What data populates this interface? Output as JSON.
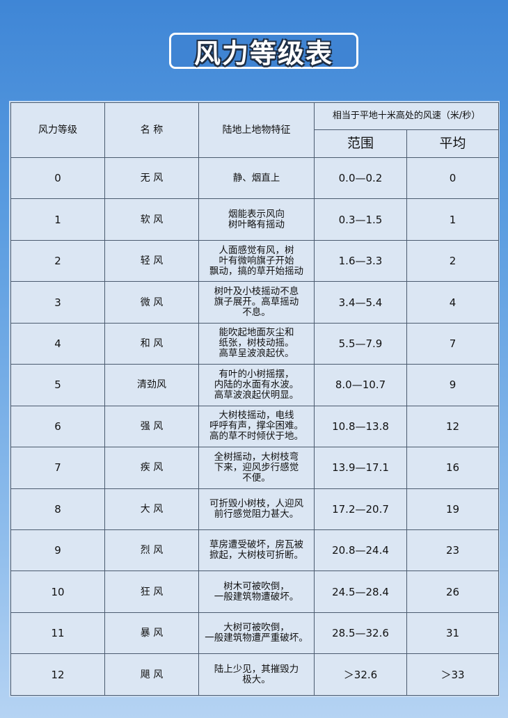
{
  "title": "风力等级表",
  "header": {
    "level": "风力等级",
    "name": "名 称",
    "feature": "陆地上地物特征",
    "speed": "相当于平地十米高处的风速（米/秒）",
    "range": "范围",
    "average": "平均"
  },
  "rows": [
    {
      "level": "0",
      "name": "无 风",
      "feature": "静、烟直上",
      "range": "0.0—0.2",
      "avg": "0"
    },
    {
      "level": "1",
      "name": "软 风",
      "feature": "烟能表示风向\n树叶略有摇动",
      "range": "0.3—1.5",
      "avg": "1"
    },
    {
      "level": "2",
      "name": "轻 风",
      "feature": "人面感觉有风，树\n叶有微响旗子开始\n飘动，搞的草开始摇动",
      "range": "1.6—3.3",
      "avg": "2"
    },
    {
      "level": "3",
      "name": "微 风",
      "feature": "树叶及小枝摇动不息\n旗子展开。高草摇动\n不息。",
      "range": "3.4—5.4",
      "avg": "4"
    },
    {
      "level": "4",
      "name": "和 风",
      "feature": "能吹起地面灰尘和\n纸张，树枝动摇。\n高草呈波浪起伏。",
      "range": "5.5—7.9",
      "avg": "7"
    },
    {
      "level": "5",
      "name": "清劲风",
      "feature": "有叶的小树摇摆，\n内陆的水面有水波。\n高草波浪起伏明显。",
      "range": "8.0—10.7",
      "avg": "9"
    },
    {
      "level": "6",
      "name": "强 风",
      "feature": "大树枝摇动，电线\n呼呼有声，撑伞困难。\n高的草不时倾伏于地。",
      "range": "10.8—13.8",
      "avg": "12"
    },
    {
      "level": "7",
      "name": "疾 风",
      "feature": "全树摇动，大树枝弯\n下来，迎风步行感觉\n不便。",
      "range": "13.9—17.1",
      "avg": "16"
    },
    {
      "level": "8",
      "name": "大 风",
      "feature": "可折毁小树枝，人迎风\n前行感觉阻力甚大。",
      "range": "17.2—20.7",
      "avg": "19"
    },
    {
      "level": "9",
      "name": "烈 风",
      "feature": "草房遭受破坏，房瓦被\n掀起，大树枝可折断。",
      "range": "20.8—24.4",
      "avg": "23"
    },
    {
      "level": "10",
      "name": "狂 风",
      "feature": "树木可被吹倒，\n一般建筑物遭破坏。",
      "range": "24.5—28.4",
      "avg": "26"
    },
    {
      "level": "11",
      "name": "暴 风",
      "feature": "大树可被吹倒，\n一般建筑物遭严重破坏。",
      "range": "28.5—32.6",
      "avg": "31"
    },
    {
      "level": "12",
      "name": "飓 风",
      "feature": "陆上少见，其摧毁力\n极大。",
      "range": "＞32.6",
      "avg": "＞33"
    }
  ]
}
